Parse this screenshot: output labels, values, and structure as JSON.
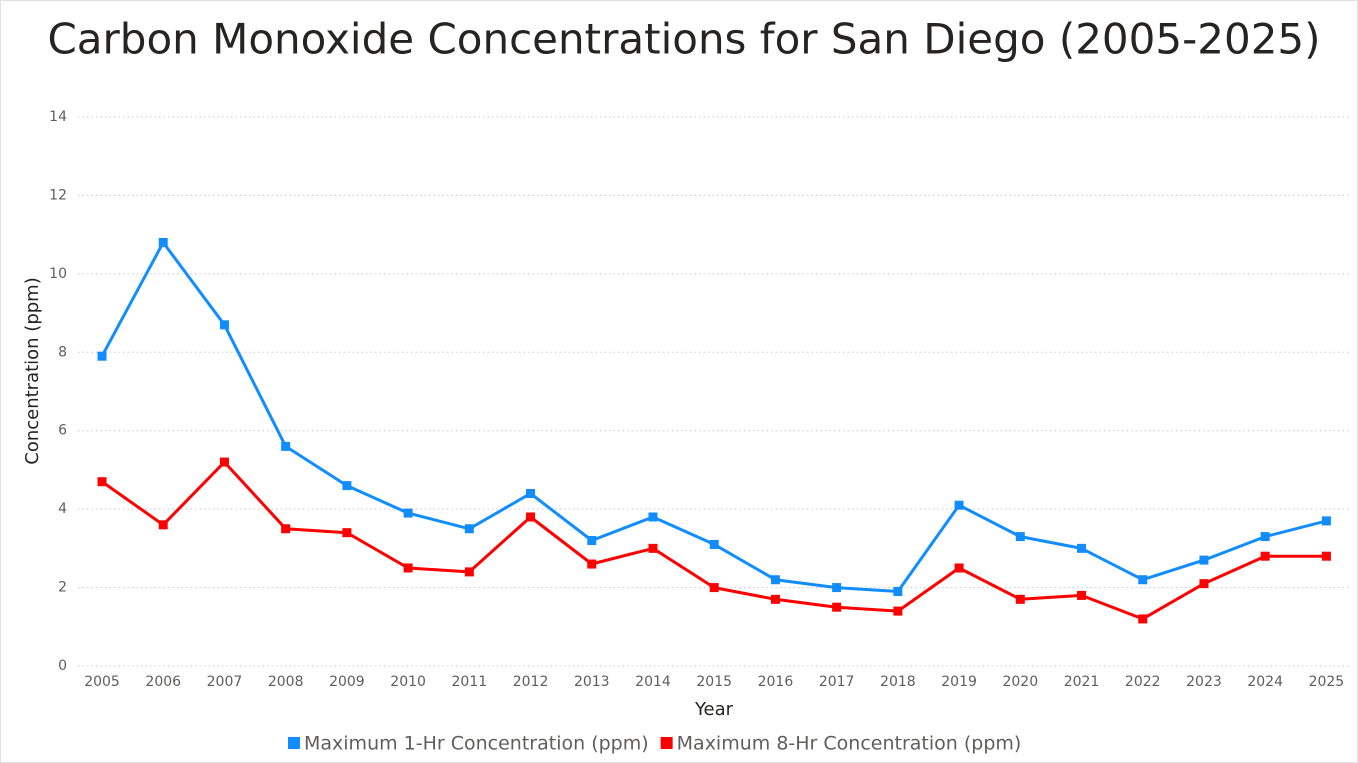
{
  "chart_data": {
    "type": "line",
    "title": "Carbon Monoxide Concentrations for San Diego (2005-2025)",
    "x_label": "Year",
    "y_label": "Concentration (ppm)",
    "categories": [
      "2005",
      "2006",
      "2007",
      "2008",
      "2009",
      "2010",
      "2011",
      "2012",
      "2013",
      "2014",
      "2015",
      "2016",
      "2017",
      "2018",
      "2019",
      "2020",
      "2021",
      "2022",
      "2023",
      "2024",
      "2025"
    ],
    "series": [
      {
        "name": "Maximum 1-Hr Concentration (ppm)",
        "color": "#118dff",
        "values": [
          7.9,
          10.8,
          8.7,
          5.6,
          4.6,
          3.9,
          3.5,
          4.4,
          3.2,
          3.8,
          3.1,
          2.2,
          2.0,
          1.9,
          4.1,
          3.3,
          3.0,
          2.2,
          2.7,
          3.3,
          3.7
        ]
      },
      {
        "name": "Maximum 8-Hr Concentration (ppm)",
        "color": "#ff0000",
        "values": [
          4.7,
          3.6,
          5.2,
          3.5,
          3.4,
          2.5,
          2.4,
          3.8,
          2.6,
          3.0,
          2.0,
          1.7,
          1.5,
          1.4,
          2.5,
          1.7,
          1.8,
          1.2,
          2.1,
          2.8,
          2.8
        ]
      }
    ],
    "ylim": [
      0,
      14
    ],
    "yticks": [
      0,
      2,
      4,
      6,
      8,
      10,
      12,
      14
    ],
    "grid": true
  }
}
